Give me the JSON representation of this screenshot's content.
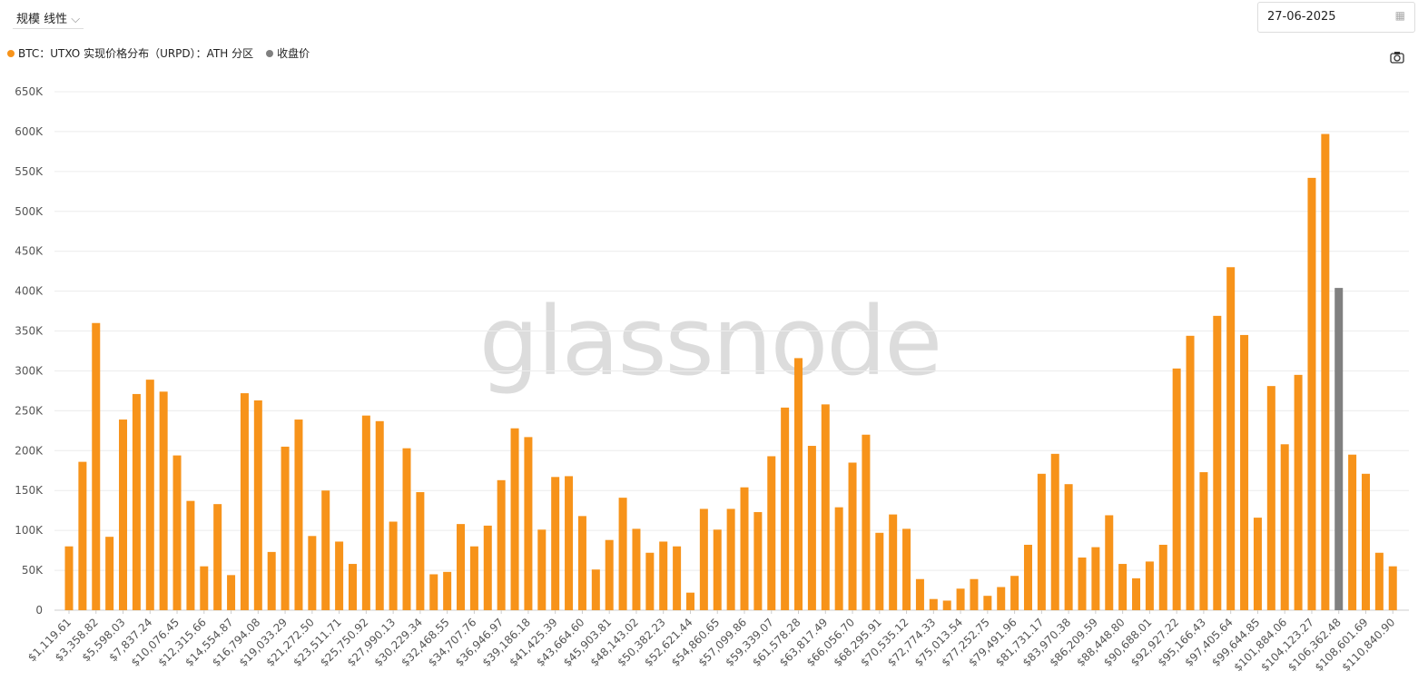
{
  "controls": {
    "scale": "规模 线性",
    "date": "27-06-2025"
  },
  "chart_data": {
    "type": "bar",
    "watermark": "glassnode",
    "categories": [
      "$1,119.61",
      null,
      "$3,358.82",
      null,
      "$5,598.03",
      null,
      "$7,837.24",
      null,
      "$10,076.45",
      null,
      "$12,315.66",
      null,
      "$14,554.87",
      null,
      "$16,794.08",
      null,
      "$19,033.29",
      null,
      "$21,272.50",
      null,
      "$23,511.71",
      null,
      "$25,750.92",
      null,
      "$27,990.13",
      null,
      "$30,229.34",
      null,
      "$32,468.55",
      null,
      "$34,707.76",
      null,
      "$36,946.97",
      null,
      "$39,186.18",
      null,
      "$41,425.39",
      null,
      "$43,664.60",
      null,
      "$45,903.81",
      null,
      "$48,143.02",
      null,
      "$50,382.23",
      null,
      "$52,621.44",
      null,
      "$54,860.65",
      null,
      "$57,099.86",
      null,
      "$59,339.07",
      null,
      "$61,578.28",
      null,
      "$63,817.49",
      null,
      "$66,056.70",
      null,
      "$68,295.91",
      null,
      "$70,535.12",
      null,
      "$72,774.33",
      null,
      "$75,013.54",
      null,
      "$77,252.75",
      null,
      "$79,491.96",
      null,
      "$81,731.17",
      null,
      "$83,970.38",
      null,
      "$86,209.59",
      null,
      "$88,448.80",
      null,
      "$90,688.01",
      null,
      "$92,927.22",
      null,
      "$95,166.43",
      null,
      "$97,405.64",
      null,
      "$99,644.85",
      null,
      "$101,884.06",
      null,
      "$104,123.27",
      null,
      "$106,362.48",
      null,
      "$108,601.69",
      null,
      "$110,840.90"
    ],
    "series": [
      {
        "name": "BTC：UTXO 实现价格分布（URPD）：ATH 分区",
        "color": "#f7931a",
        "values": [
          80000,
          186000,
          360000,
          92000,
          239000,
          271000,
          289000,
          274000,
          194000,
          137000,
          55000,
          133000,
          44000,
          272000,
          263000,
          73000,
          205000,
          239000,
          93000,
          150000,
          86000,
          58000,
          244000,
          237000,
          111000,
          203000,
          148000,
          45000,
          48000,
          108000,
          80000,
          106000,
          163000,
          228000,
          217000,
          101000,
          167000,
          168000,
          118000,
          51000,
          88000,
          141000,
          102000,
          72000,
          86000,
          80000,
          22000,
          127000,
          101000,
          127000,
          154000,
          123000,
          193000,
          254000,
          316000,
          206000,
          258000,
          129000,
          185000,
          220000,
          97000,
          120000,
          102000,
          39000,
          14000,
          12000,
          27000,
          39000,
          18000,
          29000,
          43000,
          82000,
          171000,
          196000,
          158000,
          66000,
          79000,
          119000,
          58000,
          40000,
          61000,
          82000,
          303000,
          344000,
          173000,
          369000,
          430000,
          345000,
          116000,
          281000,
          208000,
          295000,
          542000,
          597000,
          null,
          195000,
          171000,
          72000,
          55000
        ]
      },
      {
        "name": "收盘价",
        "color": "#808080",
        "values": [
          null,
          null,
          null,
          null,
          null,
          null,
          null,
          null,
          null,
          null,
          null,
          null,
          null,
          null,
          null,
          null,
          null,
          null,
          null,
          null,
          null,
          null,
          null,
          null,
          null,
          null,
          null,
          null,
          null,
          null,
          null,
          null,
          null,
          null,
          null,
          null,
          null,
          null,
          null,
          null,
          null,
          null,
          null,
          null,
          null,
          null,
          null,
          null,
          null,
          null,
          null,
          null,
          null,
          null,
          null,
          null,
          null,
          null,
          null,
          null,
          null,
          null,
          null,
          null,
          null,
          null,
          null,
          null,
          null,
          null,
          null,
          null,
          null,
          null,
          null,
          null,
          null,
          null,
          null,
          null,
          null,
          null,
          null,
          null,
          null,
          null,
          null,
          null,
          null,
          null,
          null,
          null,
          null,
          null,
          404000,
          null,
          null,
          null,
          null
        ]
      }
    ],
    "ylim": [
      0,
      650000
    ],
    "yticks": [
      0,
      {
        "value": 50000,
        "label": "50K"
      },
      {
        "value": 100000,
        "label": "100K"
      },
      {
        "value": 150000,
        "label": "150K"
      },
      {
        "value": 200000,
        "label": "200K"
      },
      {
        "value": 250000,
        "label": "250K"
      },
      {
        "value": 300000,
        "label": "300K"
      },
      {
        "value": 350000,
        "label": "350K"
      },
      {
        "value": 400000,
        "label": "400K"
      },
      {
        "value": 450000,
        "label": "450K"
      },
      {
        "value": 500000,
        "label": "500K"
      },
      {
        "value": 550000,
        "label": "550K"
      },
      {
        "value": 600000,
        "label": "600K"
      },
      {
        "value": 650000,
        "label": "650K"
      }
    ],
    "grid": true
  }
}
